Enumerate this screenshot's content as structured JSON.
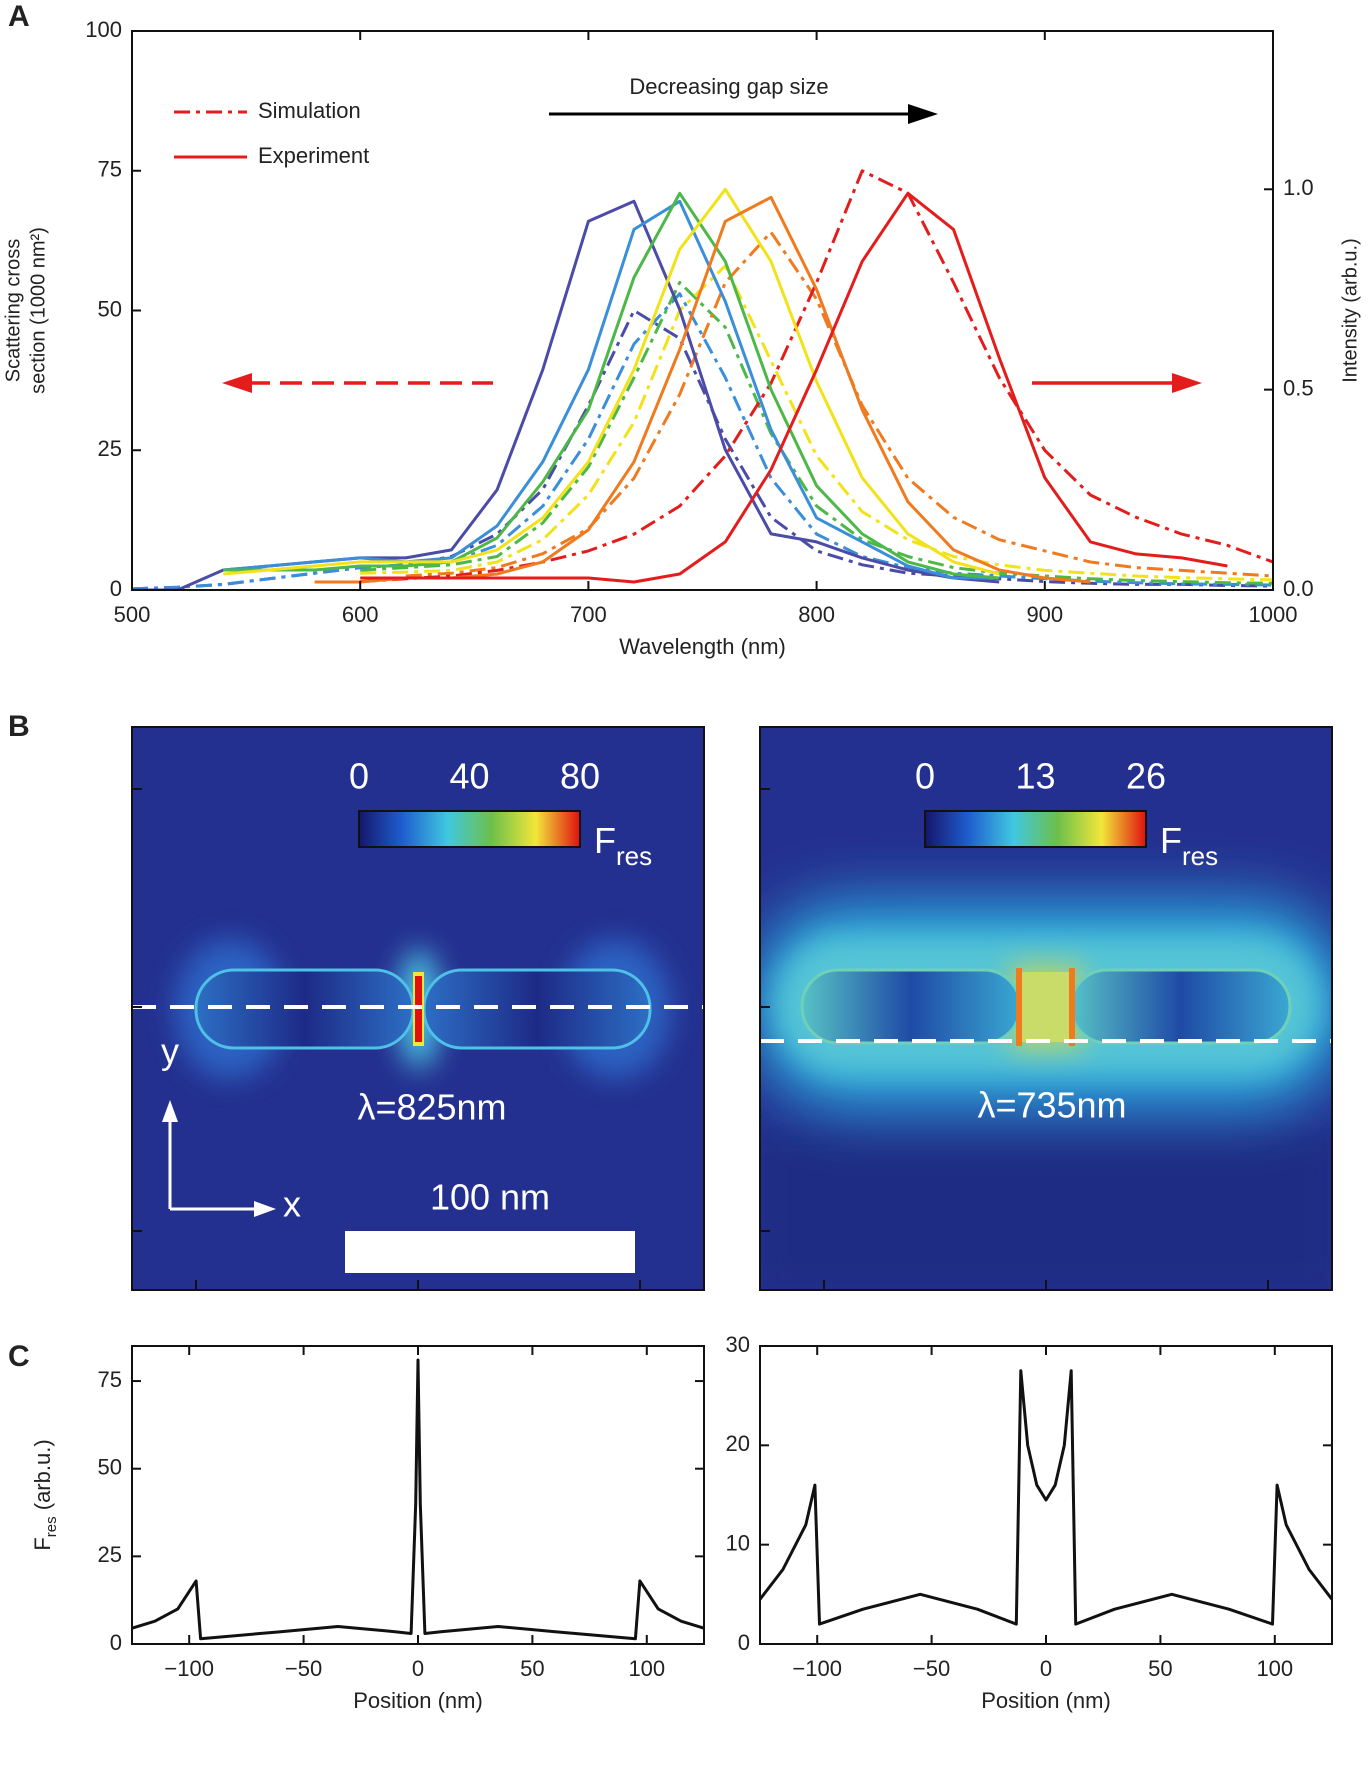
{
  "panel_labels": [
    "A",
    "B",
    "C"
  ],
  "chart_data": [
    {
      "type": "line",
      "xlabel": "Wavelength (nm)",
      "ylabel_lines": [
        "Scattering cross",
        "section (1000 nm²)"
      ],
      "y2label": "Intensity (arb.u.)",
      "annotation": "Decreasing gap size",
      "xlim": [
        500,
        1000
      ],
      "xticks": [
        500,
        600,
        700,
        800,
        900,
        1000
      ],
      "ylim": [
        0,
        100
      ],
      "yticks": [
        0,
        25,
        50,
        75,
        100
      ],
      "y2lim": [
        0,
        1.395
      ],
      "y2ticks": [
        {
          "value": 0,
          "label": "0.0"
        },
        0.5,
        {
          "value": 1,
          "label": "1.0"
        }
      ],
      "legend": [
        {
          "label": "Simulation",
          "style": "dashdot",
          "color": "#e41c1c"
        },
        {
          "label": "Experiment",
          "style": "solid",
          "color": "#e41c1c"
        }
      ],
      "x": [
        500,
        520,
        540,
        560,
        580,
        600,
        620,
        640,
        660,
        680,
        700,
        720,
        740,
        760,
        780,
        800,
        820,
        840,
        860,
        880,
        900,
        920,
        940,
        960,
        980,
        1000
      ],
      "series": [
        {
          "style": "dashdot",
          "color": "#4b4ba8",
          "values": [
            0.2,
            0.5,
            1,
            2,
            3,
            4,
            4.5,
            6,
            10,
            18,
            33,
            50,
            45,
            27,
            13,
            7,
            4.5,
            3,
            2.5,
            2,
            1.5,
            1.2,
            1,
            1,
            0.8,
            0.7
          ]
        },
        {
          "style": "dashdot",
          "color": "#3a8fd8",
          "values": [
            0.2,
            0.5,
            1,
            2,
            3,
            4,
            4.5,
            5,
            8,
            15,
            27,
            44,
            53,
            38,
            20,
            10,
            6,
            4,
            3,
            2.5,
            2,
            1.6,
            1.3,
            1.1,
            1,
            0.9
          ]
        },
        {
          "style": "dashdot",
          "color": "#4db848",
          "values": [
            null,
            null,
            null,
            null,
            null,
            3.5,
            4,
            4.5,
            6,
            12,
            22,
            38,
            55,
            47,
            28,
            15,
            9,
            6,
            4,
            3,
            2.5,
            2,
            1.7,
            1.5,
            1.3,
            1.2
          ]
        },
        {
          "style": "dashdot",
          "color": "#f2e21a",
          "values": [
            null,
            null,
            null,
            null,
            null,
            3,
            3.2,
            3.5,
            5,
            9,
            17,
            30,
            50,
            58,
            41,
            24,
            14,
            9,
            6,
            4.5,
            3.5,
            3,
            2.5,
            2.2,
            2,
            1.8
          ]
        },
        {
          "style": "dashdot",
          "color": "#f07a1e",
          "values": [
            null,
            null,
            null,
            null,
            null,
            null,
            2.5,
            3,
            4,
            6.5,
            11,
            20,
            35,
            55,
            64,
            52,
            33,
            20,
            13,
            9,
            7,
            5,
            4,
            3.5,
            3,
            2.5
          ]
        },
        {
          "style": "dashdot",
          "color": "#e41c1c",
          "values": [
            null,
            null,
            null,
            null,
            null,
            1.5,
            2,
            2.5,
            3.5,
            5,
            7,
            10,
            15,
            24,
            37,
            55,
            75,
            71,
            55,
            38,
            25,
            17,
            13,
            10,
            8,
            5
          ]
        },
        {
          "style": "solid",
          "axis": "y2",
          "color": "#4b4ba8",
          "values": [
            0,
            0,
            0.05,
            0.06,
            0.07,
            0.08,
            0.08,
            0.1,
            0.25,
            0.55,
            0.92,
            0.97,
            0.7,
            0.35,
            0.14,
            0.12,
            0.08,
            0.05,
            0.03,
            0.02,
            null,
            null,
            null,
            null,
            null,
            null
          ]
        },
        {
          "style": "solid",
          "axis": "y2",
          "color": "#3a8fd8",
          "values": [
            null,
            null,
            0.05,
            0.06,
            0.07,
            0.08,
            0.07,
            0.08,
            0.16,
            0.32,
            0.55,
            0.9,
            0.97,
            0.72,
            0.4,
            0.18,
            0.12,
            0.06,
            0.03,
            0.03,
            null,
            null,
            null,
            null,
            null,
            null
          ]
        },
        {
          "style": "solid",
          "axis": "y2",
          "color": "#4db848",
          "values": [
            null,
            null,
            0.05,
            0.05,
            0.05,
            0.06,
            0.06,
            0.07,
            0.13,
            0.27,
            0.45,
            0.78,
            0.99,
            0.82,
            0.5,
            0.26,
            0.14,
            0.07,
            0.04,
            0.03,
            null,
            null,
            null,
            null,
            null,
            null
          ]
        },
        {
          "style": "solid",
          "axis": "y2",
          "color": "#f2e21a",
          "values": [
            null,
            null,
            0.04,
            0.05,
            0.06,
            0.07,
            0.07,
            0.07,
            0.1,
            0.18,
            0.32,
            0.55,
            0.85,
            1.0,
            0.82,
            0.52,
            0.28,
            0.14,
            0.07,
            0.04,
            null,
            null,
            null,
            null,
            null,
            null
          ]
        },
        {
          "style": "solid",
          "axis": "y2",
          "color": "#f07a1e",
          "values": [
            null,
            null,
            null,
            null,
            0.02,
            0.02,
            0.03,
            0.03,
            0.04,
            0.07,
            0.15,
            0.32,
            0.6,
            0.92,
            0.98,
            0.75,
            0.45,
            0.22,
            0.1,
            0.05,
            0.03,
            0.02,
            null,
            null,
            null,
            null
          ]
        },
        {
          "style": "solid",
          "axis": "y2",
          "color": "#e41c1c",
          "values": [
            null,
            null,
            null,
            null,
            null,
            0.03,
            0.03,
            0.03,
            0.03,
            0.03,
            0.03,
            0.02,
            0.04,
            0.12,
            0.3,
            0.55,
            0.82,
            0.99,
            0.9,
            0.58,
            0.28,
            0.12,
            0.09,
            0.08,
            0.06,
            null
          ]
        }
      ]
    },
    {
      "type": "line",
      "xlabel": "Position (nm)",
      "ylabel_parts": [
        "F",
        "res",
        " (arb.u.)"
      ],
      "xlim": [
        -125,
        125
      ],
      "xticks": [
        {
          "value": -100,
          "label": "−100"
        },
        {
          "value": -50,
          "label": "−50"
        },
        0,
        50,
        100
      ],
      "ylim": [
        0,
        85
      ],
      "yticks": [
        0,
        25,
        50,
        75
      ],
      "x": [
        -125,
        -115,
        -105,
        -97,
        -95,
        -60,
        -35,
        -10,
        -3,
        -1,
        0,
        1,
        3,
        10,
        35,
        60,
        95,
        97,
        105,
        115,
        125
      ],
      "series": [
        {
          "style": "solid",
          "color": "#111111",
          "values": [
            4.5,
            6.5,
            10,
            18,
            1.5,
            3.5,
            5,
            3.5,
            3,
            40,
            81,
            40,
            3,
            3.5,
            5,
            3.5,
            1.5,
            18,
            10,
            6.5,
            4.5
          ]
        }
      ]
    },
    {
      "type": "line",
      "xlabel": "Position (nm)",
      "xlim": [
        -125,
        125
      ],
      "xticks": [
        {
          "value": -100,
          "label": "−100"
        },
        {
          "value": -50,
          "label": "−50"
        },
        0,
        50,
        100
      ],
      "ylim": [
        0,
        30
      ],
      "yticks": [
        0,
        10,
        20,
        30
      ],
      "x": [
        -125,
        -115,
        -105,
        -101,
        -99,
        -80,
        -55,
        -30,
        -13,
        -11,
        -8,
        -4,
        0,
        4,
        8,
        11,
        13,
        30,
        55,
        80,
        99,
        101,
        105,
        115,
        125
      ],
      "series": [
        {
          "style": "solid",
          "color": "#111111",
          "values": [
            4.5,
            7.5,
            12,
            16,
            2,
            3.5,
            5,
            3.5,
            2,
            27.5,
            20,
            16,
            14.5,
            16,
            20,
            27.5,
            2,
            3.5,
            5,
            3.5,
            2,
            16,
            12,
            7.5,
            4.5
          ]
        }
      ]
    }
  ],
  "panel_b": {
    "maps": [
      {
        "colorbar": {
          "lim": [
            0,
            80
          ],
          "ticks": [
            0,
            40,
            80
          ],
          "label": "F",
          "label_sub": "res"
        },
        "wavelength": "λ=825nm"
      },
      {
        "colorbar": {
          "lim": [
            0,
            26
          ],
          "ticks": [
            0,
            13,
            26
          ],
          "label": "F",
          "label_sub": "res"
        },
        "wavelength": "λ=735nm"
      }
    ],
    "scale_bar": "100 nm",
    "axis_x": "x",
    "axis_y": "y"
  }
}
